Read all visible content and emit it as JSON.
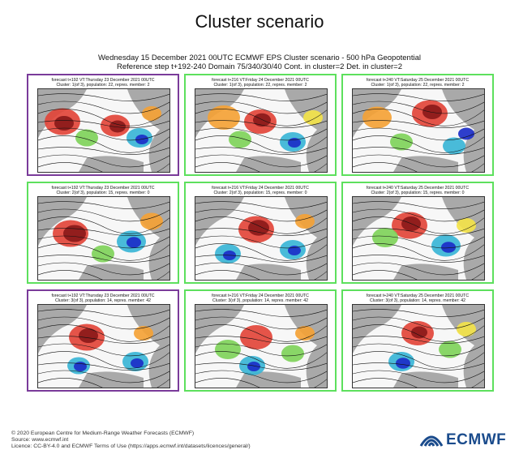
{
  "title": "Cluster scenario",
  "header": {
    "line1": "Wednesday 15 December 2021 00UTC ECMWF EPS Cluster scenario - 500 hPa Geopotential",
    "line2": "Reference step t+192-240 Domain 75/340/30/40 Cont. in cluster=2 Det. in cluster=2"
  },
  "panels": [
    {
      "line1": "forecast t+192 VT:Thursday 23 December 2021 00UTC",
      "line2": "Cluster: 1(of 3), population: 22, repres. member: 2",
      "border": "#7a3b9a"
    },
    {
      "line1": "forecast t+216 VT:Friday 24 December 2021 00UTC",
      "line2": "Cluster: 1(of 3), population: 22, repres. member: 2",
      "border": "#5de05d"
    },
    {
      "line1": "forecast t+240 VT:Saturday 25 December 2021 00UTC",
      "line2": "Cluster: 1(of 3), population: 22, repres. member: 2",
      "border": "#5de05d"
    },
    {
      "line1": "forecast t+192 VT:Thursday 23 December 2021 00UTC",
      "line2": "Cluster: 2(of 3), population: 15, repres. member: 0",
      "border": "#5de05d"
    },
    {
      "line1": "forecast t+216 VT:Friday 24 December 2021 00UTC",
      "line2": "Cluster: 2(of 3), population: 15, repres. member: 0",
      "border": "#5de05d"
    },
    {
      "line1": "forecast t+240 VT:Saturday 25 December 2021 00UTC",
      "line2": "Cluster: 2(of 3), population: 15, repres. member: 0",
      "border": "#5de05d"
    },
    {
      "line1": "forecast t+192 VT:Thursday 23 December 2021 00UTC",
      "line2": "Cluster: 3(of 3), population: 14, repres. member: 42",
      "border": "#7a3b9a"
    },
    {
      "line1": "forecast t+216 VT:Friday 24 December 2021 00UTC",
      "line2": "Cluster: 3(of 3), population: 14, repres. member: 42",
      "border": "#5de05d"
    },
    {
      "line1": "forecast t+240 VT:Saturday 25 December 2021 00UTC",
      "line2": "Cluster: 3(of 3), population: 14, repres. member: 42",
      "border": "#5de05d"
    }
  ],
  "colors": {
    "positive_strong": "#8b1a1a",
    "positive": "#e2453a",
    "positive_weak": "#f4a236",
    "neutral": "#f3e34a",
    "negative_weak": "#7fd35a",
    "negative": "#3ab5d6",
    "negative_strong": "#1c2ec8",
    "land": "#a9a9a9"
  },
  "footer": {
    "copyright": "© 2020 European Centre for Medium-Range Weather Forecasts (ECMWF)",
    "source": "Source: www.ecmwf.int",
    "licence": "Licence: CC-BY-4.0 and ECMWF Terms of Use (https://apps.ecmwf.int/datasets/licences/general/)"
  },
  "logo": {
    "text": "ECMWF",
    "color": "#1a4b8c"
  }
}
